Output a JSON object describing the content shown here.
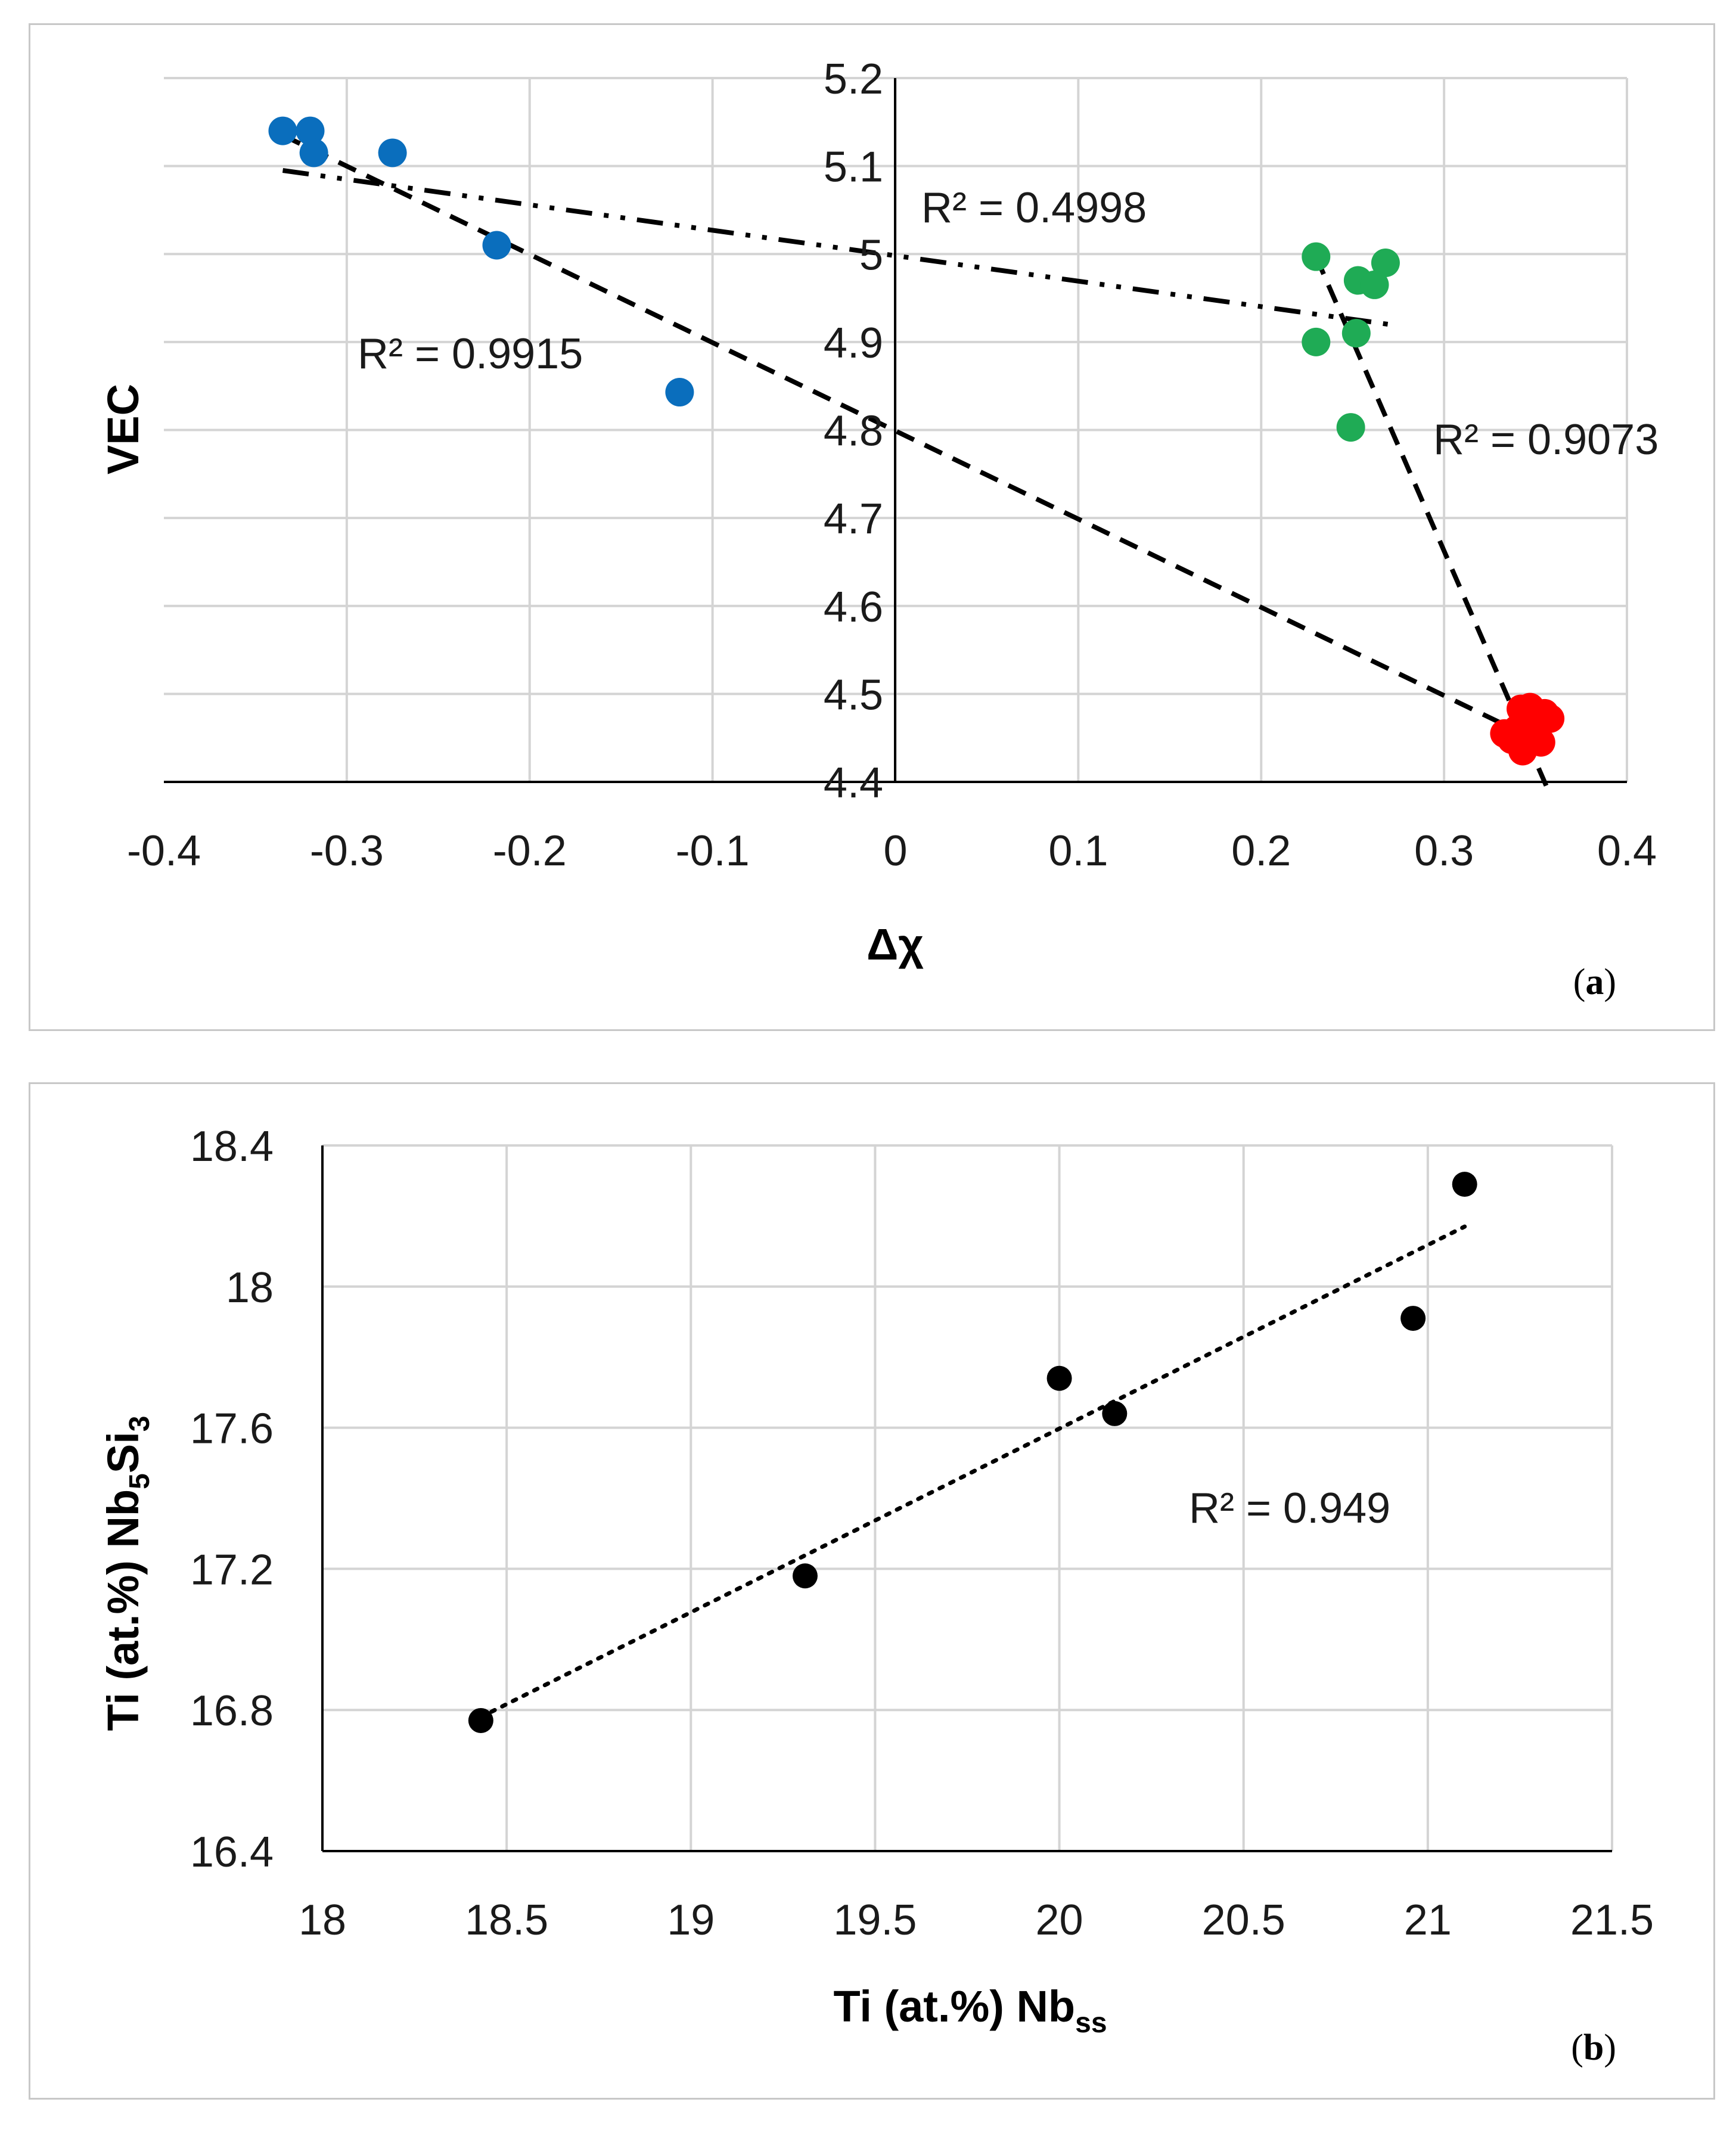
{
  "chart_data": [
    {
      "type": "scatter",
      "panel_label": "a",
      "xlabel": "Δχ",
      "ylabel": "VEC",
      "xlim": [
        -0.4,
        0.4
      ],
      "ylim": [
        4.4,
        5.2
      ],
      "x_ticks": [
        "-0.4",
        "-0.3",
        "-0.2",
        "-0.1",
        "0",
        "0.1",
        "0.2",
        "0.3",
        "0.4"
      ],
      "y_ticks": [
        "4.4",
        "4.5",
        "4.6",
        "4.7",
        "4.8",
        "4.9",
        "5",
        "5.1",
        "5.2"
      ],
      "grid": true,
      "series": [
        {
          "name": "blue",
          "color": "#0a6ebd",
          "points": [
            [
              -0.335,
              5.14
            ],
            [
              -0.32,
              5.14
            ],
            [
              -0.318,
              5.115
            ],
            [
              -0.275,
              5.115
            ],
            [
              -0.218,
              5.01
            ],
            [
              -0.118,
              4.843
            ]
          ]
        },
        {
          "name": "green",
          "color": "#1fab55",
          "points": [
            [
              0.23,
              4.997
            ],
            [
              0.268,
              4.99
            ],
            [
              0.253,
              4.97
            ],
            [
              0.262,
              4.965
            ],
            [
              0.252,
              4.91
            ],
            [
              0.23,
              4.9
            ],
            [
              0.249,
              4.803
            ]
          ]
        },
        {
          "name": "red",
          "color": "#ff0000",
          "points": [
            [
              0.333,
              4.455
            ],
            [
              0.337,
              4.448
            ],
            [
              0.34,
              4.46
            ],
            [
              0.342,
              4.483
            ],
            [
              0.345,
              4.47
            ],
            [
              0.347,
              4.485
            ],
            [
              0.35,
              4.465
            ],
            [
              0.355,
              4.478
            ],
            [
              0.358,
              4.472
            ],
            [
              0.343,
              4.435
            ],
            [
              0.353,
              4.445
            ]
          ]
        }
      ],
      "trendlines": [
        {
          "name": "trend-blue-red",
          "style": "dashed",
          "from": [
            -0.335,
            5.135
          ],
          "to": [
            0.355,
            4.443
          ],
          "r2_label": "R² = 0.9915"
        },
        {
          "name": "trend-blue-green",
          "style": "dash-dot-dot",
          "from": [
            -0.335,
            5.095
          ],
          "to": [
            0.27,
            4.92
          ],
          "r2_label": "R² = 0.4998"
        },
        {
          "name": "trend-green-red",
          "style": "dashed",
          "from": [
            0.23,
            4.997
          ],
          "to": [
            0.356,
            4.395
          ],
          "r2_label": "R² = 0.9073"
        }
      ]
    },
    {
      "type": "scatter",
      "panel_label": "b",
      "xlabel_main": "Ti (at.%) Nb",
      "xlabel_sub": "ss",
      "ylabel_main": "Ti (at.%) Nb",
      "ylabel_sub1": "5",
      "ylabel_mid": "Si",
      "ylabel_sub2": "3",
      "xlim": [
        18,
        21.5
      ],
      "ylim": [
        16.4,
        18.4
      ],
      "x_ticks": [
        "18",
        "18.5",
        "19",
        "19.5",
        "20",
        "20.5",
        "21",
        "21.5"
      ],
      "y_ticks": [
        "16.4",
        "16.8",
        "17.2",
        "17.6",
        "18",
        "18.4"
      ],
      "grid": true,
      "series": [
        {
          "name": "points",
          "color": "#000000",
          "points": [
            [
              18.43,
              16.77
            ],
            [
              19.31,
              17.18
            ],
            [
              20.0,
              17.74
            ],
            [
              20.15,
              17.64
            ],
            [
              20.96,
              17.91
            ],
            [
              21.1,
              18.29
            ]
          ]
        }
      ],
      "trendline": {
        "style": "dotted",
        "from": [
          18.43,
          16.78
        ],
        "to": [
          21.1,
          18.17
        ],
        "r2_label": "R² = 0.949"
      }
    }
  ]
}
